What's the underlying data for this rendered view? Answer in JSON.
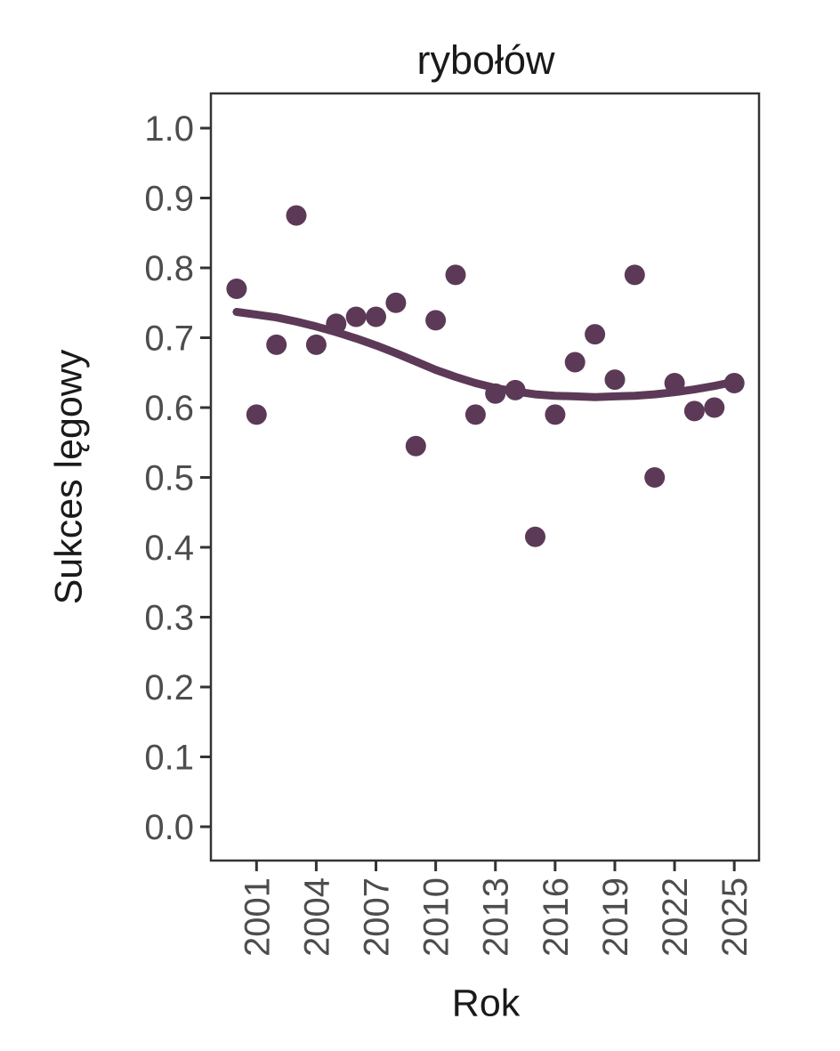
{
  "chart_data": {
    "type": "scatter",
    "title": "rybołów",
    "xlabel": "Rok",
    "ylabel": "Sukces lęgowy",
    "grid": false,
    "legend": "none",
    "xlim": [
      1998.75,
      2026.25
    ],
    "ylim": [
      -0.05,
      1.05
    ],
    "x_ticks": [
      2001,
      2004,
      2007,
      2010,
      2013,
      2016,
      2019,
      2022,
      2025
    ],
    "y_tick_labels": [
      "0.0",
      "0.1",
      "0.2",
      "0.3",
      "0.4",
      "0.5",
      "0.6",
      "0.7",
      "0.8",
      "0.9",
      "1.0"
    ],
    "y_tick_values": [
      0.0,
      0.1,
      0.2,
      0.3,
      0.4,
      0.5,
      0.6,
      0.7,
      0.8,
      0.9,
      1.0
    ],
    "series": [
      {
        "name": "breeding-success-points",
        "type": "scatter",
        "x": [
          2000,
          2001,
          2002,
          2003,
          2004,
          2005,
          2006,
          2007,
          2008,
          2009,
          2010,
          2011,
          2012,
          2013,
          2014,
          2015,
          2016,
          2017,
          2018,
          2019,
          2020,
          2021,
          2022,
          2023,
          2024,
          2025
        ],
        "y": [
          0.77,
          0.59,
          0.69,
          0.875,
          0.69,
          0.72,
          0.73,
          0.73,
          0.75,
          0.545,
          0.725,
          0.79,
          0.59,
          0.62,
          0.625,
          0.415,
          0.59,
          0.665,
          0.705,
          0.64,
          0.79,
          0.5,
          0.635,
          0.595,
          0.6,
          0.635
        ]
      },
      {
        "name": "loess-smooth-line",
        "type": "line",
        "x": [
          2000,
          2001,
          2002,
          2003,
          2004,
          2005,
          2006,
          2007,
          2008,
          2009,
          2010,
          2011,
          2012,
          2013,
          2014,
          2015,
          2016,
          2017,
          2018,
          2019,
          2020,
          2021,
          2022,
          2023,
          2024,
          2025
        ],
        "y": [
          0.737,
          0.733,
          0.729,
          0.723,
          0.716,
          0.708,
          0.699,
          0.689,
          0.678,
          0.666,
          0.654,
          0.644,
          0.635,
          0.628,
          0.623,
          0.619,
          0.617,
          0.616,
          0.615,
          0.616,
          0.617,
          0.619,
          0.622,
          0.626,
          0.631,
          0.637
        ]
      }
    ],
    "colors": {
      "point": "#5C3A57",
      "smooth_line": "#5C3A57",
      "axis_text": "#4D4D4D",
      "axis_line": "#333333",
      "title_text": "#1A1A1A"
    }
  }
}
